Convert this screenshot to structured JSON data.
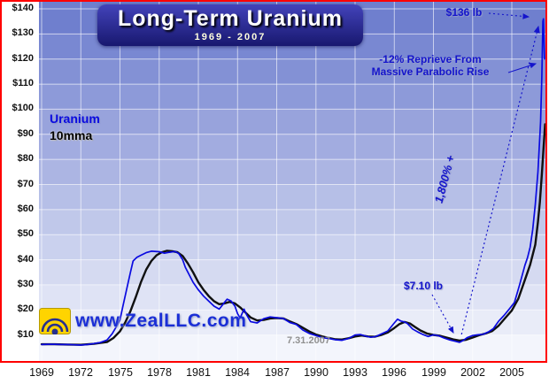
{
  "chart_data": {
    "type": "line",
    "title": "Long-Term Uranium",
    "subtitle": "1969 - 2007",
    "xlabel": "",
    "ylabel": "",
    "xlim": [
      1969,
      2007.6
    ],
    "ylim": [
      0,
      140
    ],
    "grid": true,
    "legend_position": "left-middle",
    "x_ticks": [
      1969,
      1972,
      1975,
      1978,
      1981,
      1984,
      1987,
      1990,
      1993,
      1996,
      1999,
      2002,
      2005
    ],
    "y_ticks": [
      {
        "value": 140,
        "label": "$140"
      },
      {
        "value": 130,
        "label": "$130"
      },
      {
        "value": 120,
        "label": "$120"
      },
      {
        "value": 110,
        "label": "$110"
      },
      {
        "value": 100,
        "label": "$100"
      },
      {
        "value": 90,
        "label": "$90"
      },
      {
        "value": 80,
        "label": "$80"
      },
      {
        "value": 70,
        "label": "$70"
      },
      {
        "value": 60,
        "label": "$60"
      },
      {
        "value": 50,
        "label": "$50"
      },
      {
        "value": 40,
        "label": "$40"
      },
      {
        "value": 30,
        "label": "$30"
      },
      {
        "value": 20,
        "label": "$20"
      },
      {
        "value": 10,
        "label": "$10"
      }
    ],
    "series": [
      {
        "name": "Uranium",
        "color": "#0a0ae0",
        "points": [
          [
            1969,
            6.2
          ],
          [
            1969.5,
            6.3
          ],
          [
            1970,
            6.3
          ],
          [
            1970.5,
            6.2
          ],
          [
            1971,
            6.2
          ],
          [
            1971.5,
            6.1
          ],
          [
            1972,
            6.0
          ],
          [
            1972.5,
            6.2
          ],
          [
            1973,
            6.6
          ],
          [
            1973.5,
            7.0
          ],
          [
            1974,
            8.0
          ],
          [
            1974.4,
            10.5
          ],
          [
            1974.8,
            14
          ],
          [
            1975,
            16
          ],
          [
            1975.2,
            21
          ],
          [
            1975.5,
            28
          ],
          [
            1975.8,
            35
          ],
          [
            1976,
            39.5
          ],
          [
            1976.3,
            41
          ],
          [
            1976.6,
            41.8
          ],
          [
            1977,
            42.8
          ],
          [
            1977.4,
            43.4
          ],
          [
            1978,
            43.2
          ],
          [
            1978.4,
            42.6
          ],
          [
            1978.8,
            43.0
          ],
          [
            1979.2,
            43.3
          ],
          [
            1979.5,
            42.5
          ],
          [
            1979.8,
            40
          ],
          [
            1980,
            37
          ],
          [
            1980.3,
            34
          ],
          [
            1980.6,
            31
          ],
          [
            1981,
            28
          ],
          [
            1981.4,
            25.5
          ],
          [
            1981.8,
            23.5
          ],
          [
            1982.2,
            21.5
          ],
          [
            1982.6,
            20.3
          ],
          [
            1983,
            23
          ],
          [
            1983.2,
            24.3
          ],
          [
            1983.5,
            23.6
          ],
          [
            1983.8,
            21.5
          ],
          [
            1984,
            18.5
          ],
          [
            1984.2,
            16.8
          ],
          [
            1984.5,
            20.3
          ],
          [
            1984.7,
            18
          ],
          [
            1985,
            15.3
          ],
          [
            1985.5,
            14.8
          ],
          [
            1986,
            16.5
          ],
          [
            1986.5,
            17.2
          ],
          [
            1987,
            16.9
          ],
          [
            1987.5,
            16.6
          ],
          [
            1988,
            15
          ],
          [
            1988.5,
            14.2
          ],
          [
            1989,
            12
          ],
          [
            1989.5,
            10.6
          ],
          [
            1990,
            9.8
          ],
          [
            1990.5,
            9.0
          ],
          [
            1991,
            8.6
          ],
          [
            1991.5,
            8.1
          ],
          [
            1992,
            7.9
          ],
          [
            1992.5,
            8.6
          ],
          [
            1993,
            10.0
          ],
          [
            1993.4,
            10.2
          ],
          [
            1993.8,
            9.6
          ],
          [
            1994.2,
            9.1
          ],
          [
            1994.6,
            9.4
          ],
          [
            1995,
            10.4
          ],
          [
            1995.5,
            11.6
          ],
          [
            1996,
            14.8
          ],
          [
            1996.25,
            16.3
          ],
          [
            1996.5,
            15.6
          ],
          [
            1996.8,
            15.2
          ],
          [
            1997,
            14.6
          ],
          [
            1997.4,
            12.4
          ],
          [
            1997.8,
            11.2
          ],
          [
            1998.2,
            10.2
          ],
          [
            1998.6,
            9.4
          ],
          [
            1999,
            10.1
          ],
          [
            1999.4,
            9.7
          ],
          [
            1999.8,
            8.8
          ],
          [
            2000.2,
            8.1
          ],
          [
            2000.6,
            7.6
          ],
          [
            2001,
            7.1
          ],
          [
            2001.3,
            7.9
          ],
          [
            2001.6,
            9.0
          ],
          [
            2002,
            9.8
          ],
          [
            2002.4,
            10.1
          ],
          [
            2002.8,
            10.3
          ],
          [
            2003.2,
            11.2
          ],
          [
            2003.6,
            12.6
          ],
          [
            2004,
            15.6
          ],
          [
            2004.4,
            17.8
          ],
          [
            2004.8,
            20.3
          ],
          [
            2005.2,
            23
          ],
          [
            2005.6,
            30
          ],
          [
            2006,
            37.8
          ],
          [
            2006.2,
            40.8
          ],
          [
            2006.4,
            45
          ],
          [
            2006.6,
            52
          ],
          [
            2006.8,
            62
          ],
          [
            2007,
            75
          ],
          [
            2007.1,
            85
          ],
          [
            2007.2,
            95
          ],
          [
            2007.3,
            113
          ],
          [
            2007.38,
            135
          ],
          [
            2007.42,
            136
          ],
          [
            2007.5,
            120
          ]
        ]
      },
      {
        "name": "10mma",
        "color": "#101010",
        "points": [
          [
            1969,
            6.3
          ],
          [
            1970,
            6.3
          ],
          [
            1971,
            6.2
          ],
          [
            1972,
            6.1
          ],
          [
            1973,
            6.5
          ],
          [
            1974,
            7.2
          ],
          [
            1974.5,
            8.8
          ],
          [
            1975,
            11.5
          ],
          [
            1975.4,
            15
          ],
          [
            1975.8,
            19.5
          ],
          [
            1976.2,
            25
          ],
          [
            1976.6,
            31
          ],
          [
            1977,
            36
          ],
          [
            1977.4,
            39.5
          ],
          [
            1977.8,
            41.8
          ],
          [
            1978.2,
            43
          ],
          [
            1978.6,
            43.6
          ],
          [
            1979,
            43.4
          ],
          [
            1979.4,
            43
          ],
          [
            1979.8,
            41.5
          ],
          [
            1980.2,
            38.5
          ],
          [
            1980.6,
            35
          ],
          [
            1981,
            31
          ],
          [
            1981.4,
            28
          ],
          [
            1981.8,
            25.5
          ],
          [
            1982.2,
            23.5
          ],
          [
            1982.6,
            22.3
          ],
          [
            1983,
            22.6
          ],
          [
            1983.4,
            23.2
          ],
          [
            1983.8,
            22.6
          ],
          [
            1984.2,
            21
          ],
          [
            1984.6,
            19
          ],
          [
            1985,
            17
          ],
          [
            1985.5,
            15.8
          ],
          [
            1986,
            16
          ],
          [
            1986.5,
            16.6
          ],
          [
            1987,
            16.8
          ],
          [
            1987.5,
            16.6
          ],
          [
            1988,
            15.4
          ],
          [
            1988.5,
            14.4
          ],
          [
            1989,
            12.9
          ],
          [
            1989.5,
            11.4
          ],
          [
            1990,
            10.2
          ],
          [
            1990.5,
            9.4
          ],
          [
            1991,
            8.8
          ],
          [
            1991.5,
            8.3
          ],
          [
            1992,
            8.2
          ],
          [
            1992.5,
            8.7
          ],
          [
            1993,
            9.4
          ],
          [
            1993.5,
            9.8
          ],
          [
            1994,
            9.4
          ],
          [
            1994.5,
            9.3
          ],
          [
            1995,
            10
          ],
          [
            1995.5,
            11
          ],
          [
            1996,
            12.8
          ],
          [
            1996.4,
            14.4
          ],
          [
            1996.8,
            15.2
          ],
          [
            1997.2,
            14.6
          ],
          [
            1997.6,
            13.2
          ],
          [
            1998,
            11.8
          ],
          [
            1998.5,
            10.6
          ],
          [
            1999,
            10
          ],
          [
            1999.5,
            9.7
          ],
          [
            2000,
            9
          ],
          [
            2000.5,
            8.3
          ],
          [
            2001,
            7.8
          ],
          [
            2001.5,
            8.1
          ],
          [
            2002,
            9
          ],
          [
            2002.5,
            9.9
          ],
          [
            2003,
            10.6
          ],
          [
            2003.5,
            11.6
          ],
          [
            2004,
            13.8
          ],
          [
            2004.5,
            16.8
          ],
          [
            2005,
            19.8
          ],
          [
            2005.5,
            24.5
          ],
          [
            2006,
            32
          ],
          [
            2006.4,
            38
          ],
          [
            2006.8,
            46
          ],
          [
            2007,
            55
          ],
          [
            2007.15,
            63
          ],
          [
            2007.3,
            74
          ],
          [
            2007.45,
            86
          ],
          [
            2007.55,
            94
          ]
        ]
      }
    ],
    "annotations": {
      "peak_label": "$136 lb",
      "reprieve_line1": "-12% Reprieve From",
      "reprieve_line2": "Massive Parabolic Rise",
      "gain_label": "1,800% +",
      "low_label": "$7.10 lb",
      "date_stamp": "7.31.2007"
    }
  },
  "branding": {
    "watermark": "www.ZealLLC.com",
    "logo": "zeal-sunburst-logo"
  },
  "colors": {
    "border": "#ff0000",
    "uranium_line": "#0a0ae0",
    "mma_line": "#101010",
    "annotation_text": "#1414cc",
    "band_top": "#6f7fce",
    "band_bottom": "#f3f5fc",
    "title_box": "#20208a"
  }
}
